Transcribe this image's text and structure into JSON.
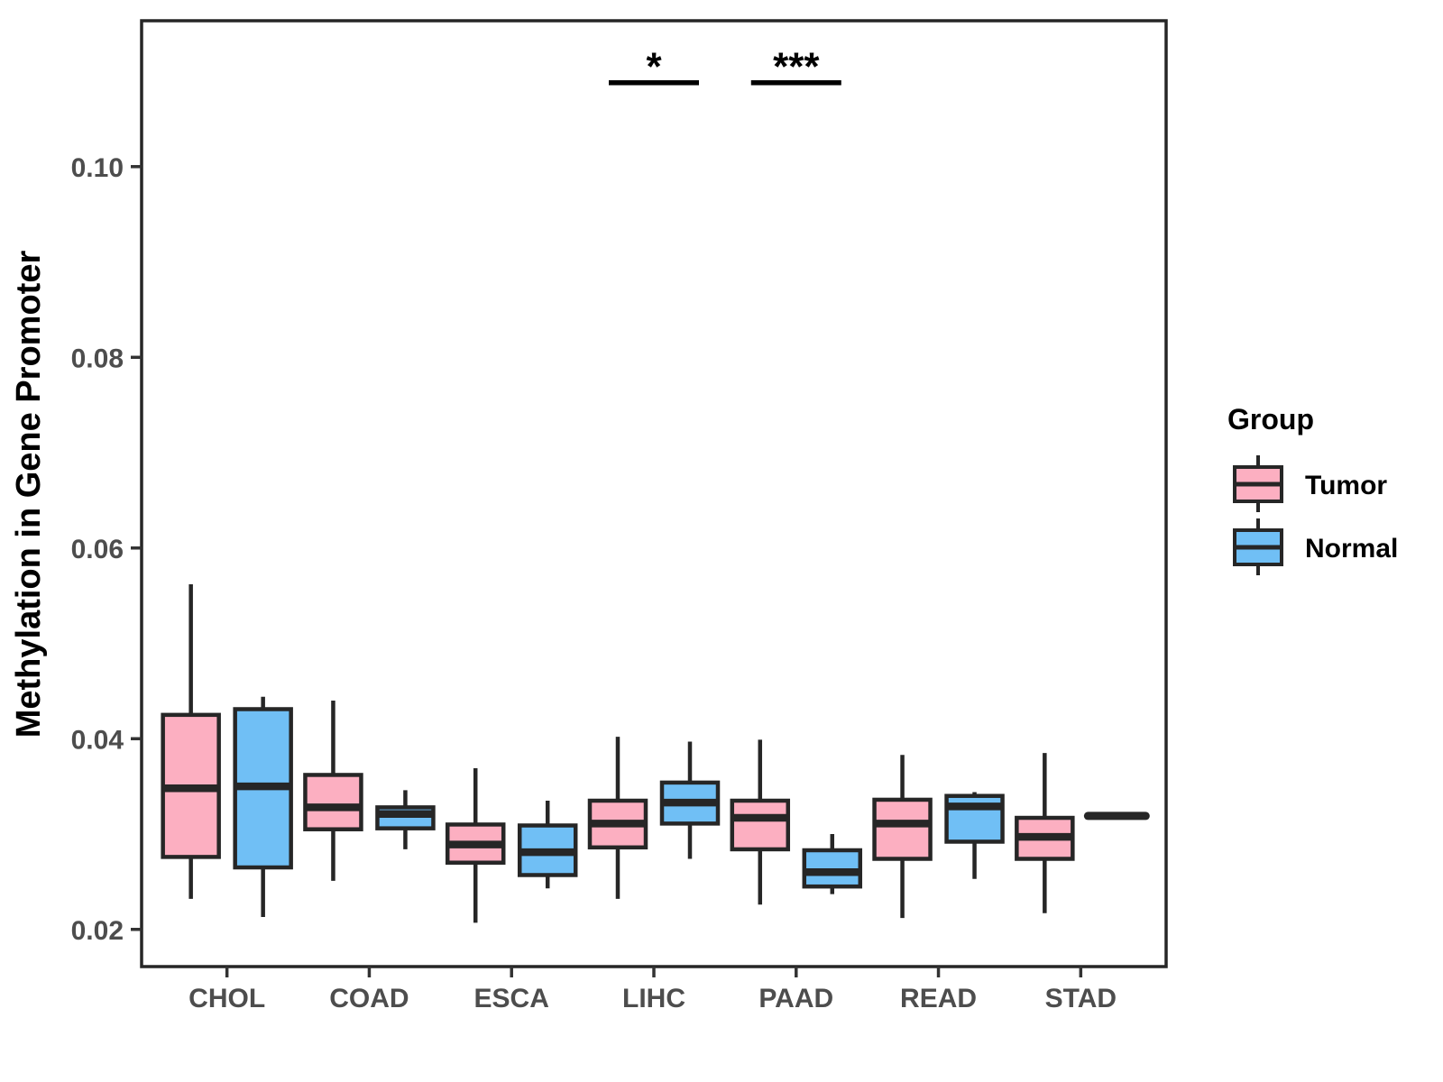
{
  "chart_data": {
    "type": "box",
    "title": "",
    "xlabel": "",
    "ylabel": "Methylation in Gene Promoter",
    "categories": [
      "CHOL",
      "COAD",
      "ESCA",
      "LIHC",
      "PAAD",
      "READ",
      "STAD"
    ],
    "yticks": [
      0.02,
      0.04,
      0.06,
      0.08,
      0.1
    ],
    "ytick_labels": [
      "0.02",
      "0.04",
      "0.06",
      "0.08",
      "0.10"
    ],
    "ylim": [
      0.0161,
      0.1153
    ],
    "grid": "off",
    "colors": {
      "Tumor": "#FCAFC1",
      "Normal": "#70BFF5",
      "stroke": "#262626"
    },
    "series": [
      {
        "name": "Tumor",
        "boxes": [
          {
            "category": "CHOL",
            "whislo": 0.0232,
            "q1": 0.0276,
            "med": 0.0348,
            "q3": 0.0425,
            "whishi": 0.0562
          },
          {
            "category": "COAD",
            "whislo": 0.0251,
            "q1": 0.0305,
            "med": 0.0328,
            "q3": 0.0362,
            "whishi": 0.044
          },
          {
            "category": "ESCA",
            "whislo": 0.0207,
            "q1": 0.027,
            "med": 0.0289,
            "q3": 0.031,
            "whishi": 0.0369
          },
          {
            "category": "LIHC",
            "whislo": 0.0232,
            "q1": 0.0286,
            "med": 0.0311,
            "q3": 0.0335,
            "whishi": 0.0402
          },
          {
            "category": "PAAD",
            "whislo": 0.0226,
            "q1": 0.0284,
            "med": 0.0317,
            "q3": 0.0335,
            "whishi": 0.0399
          },
          {
            "category": "READ",
            "whislo": 0.0212,
            "q1": 0.0274,
            "med": 0.0311,
            "q3": 0.0336,
            "whishi": 0.0383
          },
          {
            "category": "STAD",
            "whislo": 0.0217,
            "q1": 0.0274,
            "med": 0.0297,
            "q3": 0.0317,
            "whishi": 0.0385
          }
        ]
      },
      {
        "name": "Normal",
        "boxes": [
          {
            "category": "CHOL",
            "whislo": 0.0213,
            "q1": 0.0265,
            "med": 0.035,
            "q3": 0.0431,
            "whishi": 0.0444
          },
          {
            "category": "COAD",
            "whislo": 0.0284,
            "q1": 0.0306,
            "med": 0.0321,
            "q3": 0.0328,
            "whishi": 0.0346
          },
          {
            "category": "ESCA",
            "whislo": 0.0243,
            "q1": 0.0257,
            "med": 0.0281,
            "q3": 0.0309,
            "whishi": 0.0335
          },
          {
            "category": "LIHC",
            "whislo": 0.0274,
            "q1": 0.0311,
            "med": 0.0333,
            "q3": 0.0354,
            "whishi": 0.0397
          },
          {
            "category": "PAAD",
            "whislo": 0.0237,
            "q1": 0.0245,
            "med": 0.026,
            "q3": 0.0283,
            "whishi": 0.03
          },
          {
            "category": "READ",
            "whislo": 0.0253,
            "q1": 0.0292,
            "med": 0.0329,
            "q3": 0.034,
            "whishi": 0.0344
          },
          {
            "category": "STAD",
            "single": true,
            "med": 0.0319
          }
        ]
      }
    ],
    "annotations": [
      {
        "text": "*",
        "category": "LIHC"
      },
      {
        "text": "***",
        "category": "PAAD"
      }
    ],
    "bracket_y": 0.1088,
    "legend": {
      "title": "Group",
      "entries": [
        "Tumor",
        "Normal"
      ],
      "position": "right"
    }
  }
}
